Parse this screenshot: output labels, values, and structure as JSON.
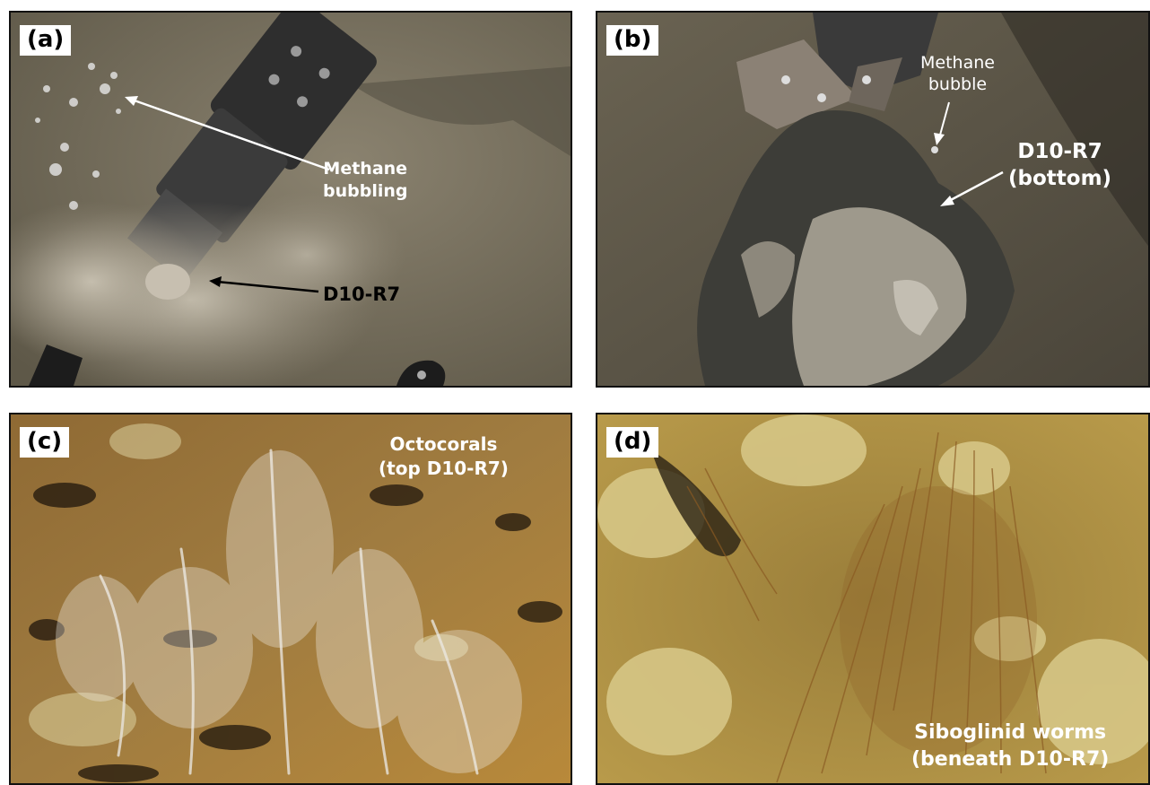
{
  "panels": {
    "a": {
      "tag": "(a)",
      "label_methane_line1": "Methane",
      "label_methane_line2": "bubbling",
      "label_sample": "D10-R7"
    },
    "b": {
      "tag": "(b)",
      "label_bubble_line1": "Methane",
      "label_bubble_line2": "bubble",
      "label_sample_line1": "D10-R7",
      "label_sample_line2": "(bottom)"
    },
    "c": {
      "tag": "(c)",
      "label_line1": "Octocorals",
      "label_line2": "(top D10-R7)"
    },
    "d": {
      "tag": "(d)",
      "label_line1": "Siboglinid worms",
      "label_line2": "(beneath D10-R7)"
    }
  },
  "colors": {
    "seafloor_grey": "#6f6656",
    "rock_dark": "#3a3a36",
    "sediment_orange": "#b8893a",
    "worm_yellow": "#b89a4a"
  }
}
